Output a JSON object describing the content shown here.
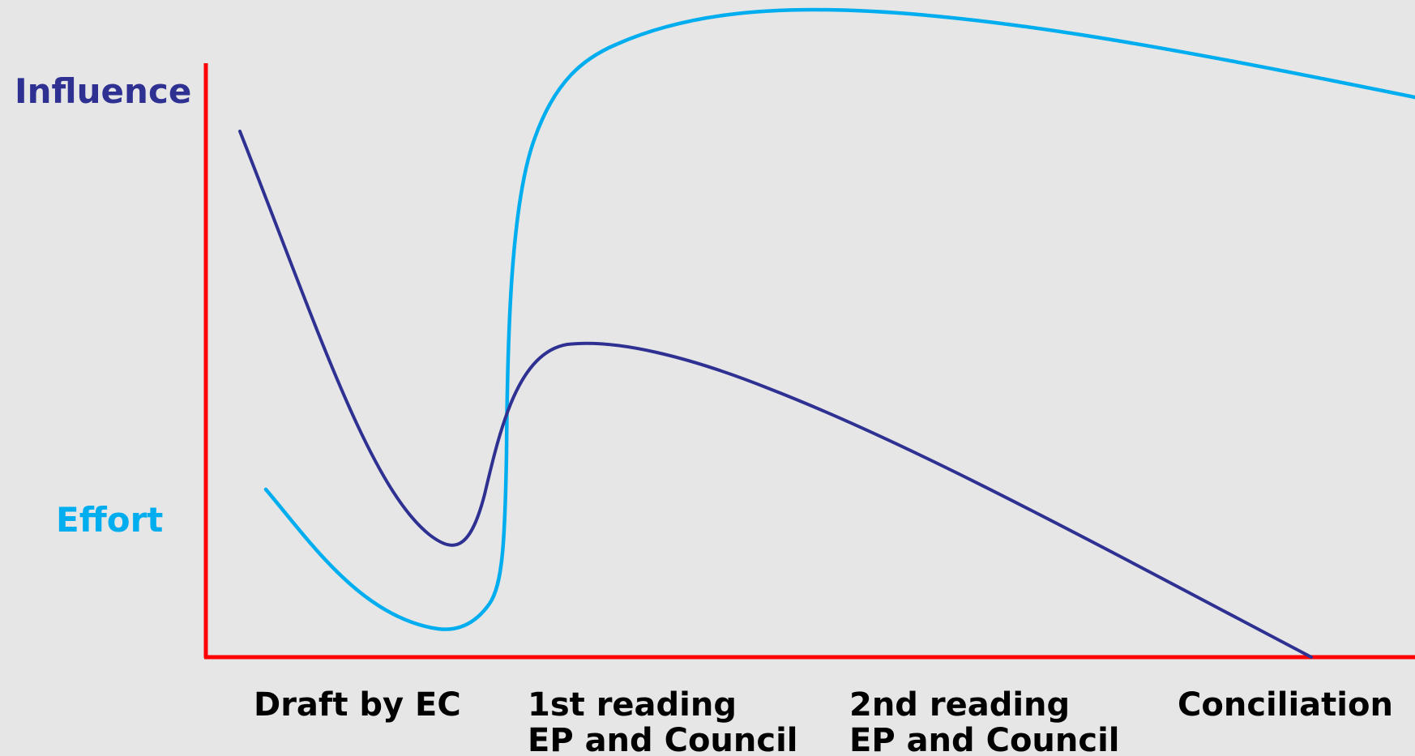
{
  "labels": {
    "influence": "Influence",
    "effort": "Effort"
  },
  "stages": [
    {
      "line1": "Draft by EC",
      "line2": ""
    },
    {
      "line1": "1st reading",
      "line2": "EP and Council"
    },
    {
      "line1": "2nd reading",
      "line2": "EP and Council"
    },
    {
      "line1": "Conciliation",
      "line2": ""
    }
  ],
  "colors": {
    "background": "#e6e6e6",
    "axes": "#ff0000",
    "influence": "#2e3192",
    "effort": "#00aeef",
    "stage_text": "#000000"
  }
}
